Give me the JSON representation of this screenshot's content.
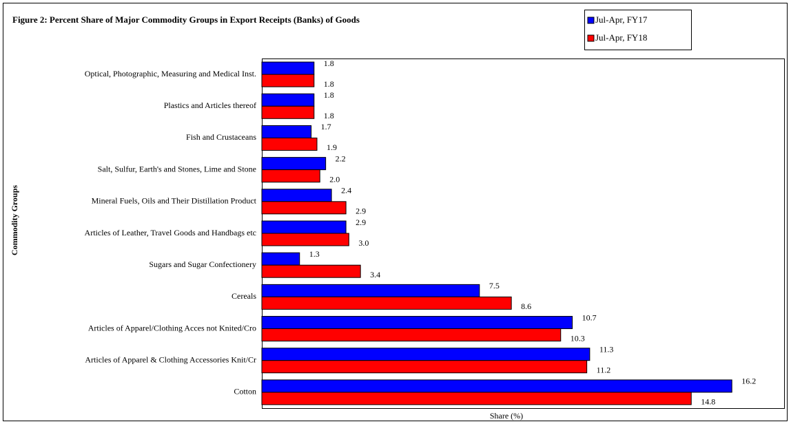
{
  "chart_data": {
    "type": "barh",
    "title": "Figure 2: Percent Share of Major Commodity Groups in Export Receipts (Banks) of Goods",
    "xlabel": "Share (%)",
    "ylabel": "Commodity Groups",
    "categories": [
      "Optical, Photographic, Measuring and Medical Inst.",
      "Plastics and Articles thereof",
      "Fish and Crustaceans",
      "Salt, Sulfur, Earth's and Stones, Lime and Stone",
      "Mineral Fuels, Oils and Their Distillation Product",
      "Articles of Leather, Travel Goods and Handbags etc",
      "Sugars and Sugar Confectionery",
      "Cereals",
      "Articles of Apparel/Clothing Acces not Knited/Cro",
      "Articles of Apparel & Clothing Accessories Knit/Cr",
      "Cotton"
    ],
    "series": [
      {
        "name": "Jul-Apr, FY17",
        "color": "#0000ff",
        "values": [
          1.8,
          1.8,
          1.7,
          2.2,
          2.4,
          2.9,
          1.3,
          7.5,
          10.7,
          11.3,
          16.2
        ],
        "value_labels": [
          "1.8",
          "1.8",
          "1.7",
          "2.2",
          "2.4",
          "2.9",
          "1.3",
          "7.5",
          "10.7",
          "11.3",
          "16.2"
        ]
      },
      {
        "name": "Jul-Apr, FY18",
        "color": "#ff0000",
        "values": [
          1.8,
          1.8,
          1.9,
          2.0,
          2.9,
          3.0,
          3.4,
          8.6,
          10.3,
          11.2,
          14.8
        ],
        "value_labels": [
          "1.8",
          "1.8",
          "1.9",
          "2.0",
          "2.9",
          "3.0",
          "3.4",
          "8.6",
          "10.3",
          "11.2",
          "14.8"
        ]
      }
    ],
    "xlim": [
      0,
      18
    ]
  }
}
